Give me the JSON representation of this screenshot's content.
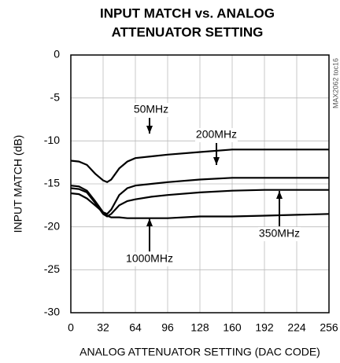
{
  "chart_data": {
    "type": "line",
    "title_lines": [
      "INPUT MATCH vs. ANALOG",
      "ATTENUATOR SETTING"
    ],
    "x_label": "ANALOG ATTENUATOR SETTING (DAC CODE)",
    "y_label": "INPUT MATCH (dB)",
    "note": "MAX2062 toc16",
    "x": [
      0,
      8,
      16,
      24,
      32,
      36,
      40,
      48,
      56,
      64,
      80,
      96,
      128,
      160,
      192,
      224,
      256
    ],
    "series": [
      {
        "name": "50MHz",
        "color": "#000000",
        "values": [
          -12.3,
          -12.4,
          -12.8,
          -13.8,
          -14.6,
          -14.8,
          -14.5,
          -13.2,
          -12.4,
          -12.0,
          -11.8,
          -11.6,
          -11.3,
          -11.0,
          -11.0,
          -11.0,
          -11.0
        ]
      },
      {
        "name": "200MHz",
        "color": "#000000",
        "values": [
          -15.2,
          -15.3,
          -15.8,
          -17.0,
          -18.3,
          -18.5,
          -18.0,
          -16.3,
          -15.5,
          -15.2,
          -15.0,
          -14.8,
          -14.5,
          -14.3,
          -14.3,
          -14.3,
          -14.3
        ]
      },
      {
        "name": "350MHz",
        "color": "#000000",
        "values": [
          -15.5,
          -15.6,
          -16.0,
          -17.2,
          -18.5,
          -18.8,
          -18.5,
          -17.5,
          -17.0,
          -16.8,
          -16.5,
          -16.3,
          -16.0,
          -15.8,
          -15.7,
          -15.7,
          -15.7
        ]
      },
      {
        "name": "1000MHz",
        "color": "#000000",
        "values": [
          -16.1,
          -16.2,
          -16.7,
          -17.5,
          -18.3,
          -18.7,
          -18.9,
          -18.9,
          -19.0,
          -19.0,
          -19.0,
          -19.0,
          -18.8,
          -18.8,
          -18.7,
          -18.6,
          -18.5
        ]
      }
    ],
    "xlim": [
      0,
      256
    ],
    "xticks": [
      0,
      32,
      64,
      96,
      128,
      160,
      192,
      224,
      256
    ],
    "ylim": [
      -30,
      0
    ],
    "yticks": [
      0,
      -5,
      -10,
      -15,
      -20,
      -25,
      -30
    ],
    "grid": true
  }
}
